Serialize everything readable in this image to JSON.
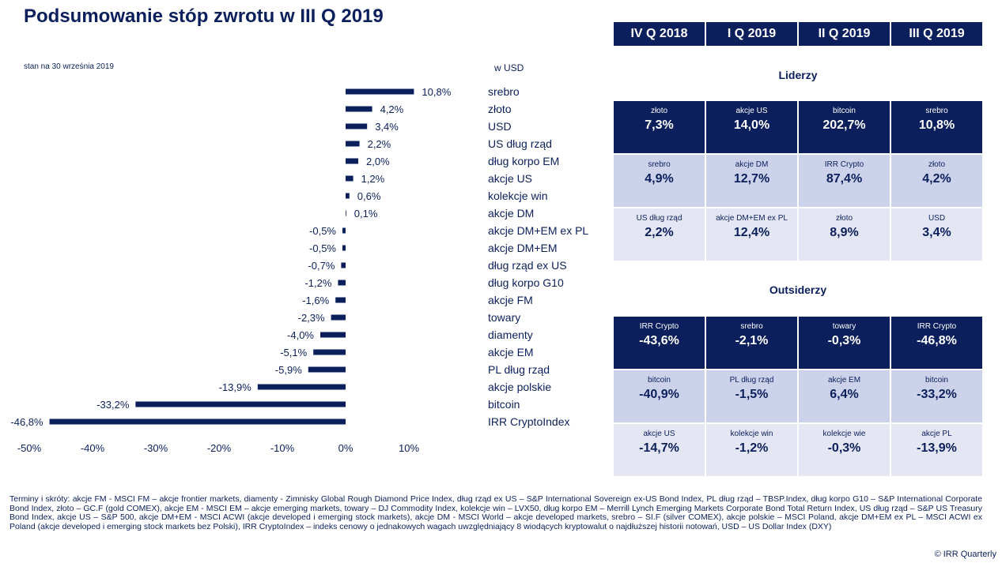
{
  "page": {
    "title": "Podsumowanie stóp zwrotu w III Q 2019",
    "as_of": "stan na 30 września 2019",
    "unit": "w USD",
    "footnote": "Terminy i skróty: akcje FM - MSCI FM – akcje frontier markets, diamenty - Zimnisky Global Rough Diamond Price Index, dług rząd ex US – S&P International Sovereign ex-US Bond Index, PL dług rząd – TBSP.Index, dług korpo G10 – S&P International Corporate Bond Index, złoto – GC.F (gold COMEX), akcje EM - MSCI EM – akcje emerging markets, towary – DJ Commodity Index, kolekcje win – LVX50, dług korpo EM – Merrill Lynch Emerging Markets Corporate Bond Total Return Index, US dług rząd – S&P US Treasury Bond Index, akcje US – S&P 500, akcje DM+EM - MSCI ACWI (akcje developed i emerging stock markets), akcje DM - MSCI World – akcje developed markets, srebro – SI.F (silver COMEX), akcje polskie – MSCI Poland, akcje DM+EM ex PL – MSCI ACWI ex Poland (akcje developed i emerging stock markets bez Polski), IRR CryptoIndex – indeks cenowy o jednakowych wagach uwzględniający 8 wiodących kryptowalut o najdłuższej historii notowań, USD – US Dollar Index (DXY)",
    "copyright": "© IRR Quarterly"
  },
  "chart_data": {
    "type": "bar",
    "orientation": "horizontal",
    "categories": [
      "srebro",
      "złoto",
      "USD",
      "US dług rząd",
      "dług korpo EM",
      "akcje US",
      "kolekcje win",
      "akcje DM",
      "akcje DM+EM ex PL",
      "akcje DM+EM",
      "dług rząd ex US",
      "dług korpo G10",
      "akcje FM",
      "towary",
      "diamenty",
      "akcje EM",
      "PL dług rząd",
      "akcje polskie",
      "bitcoin",
      "IRR CryptoIndex"
    ],
    "values": [
      10.8,
      4.2,
      3.4,
      2.2,
      2.0,
      1.2,
      0.6,
      0.1,
      -0.5,
      -0.5,
      -0.7,
      -1.2,
      -1.6,
      -2.3,
      -4.0,
      -5.1,
      -5.9,
      -13.9,
      -33.2,
      -46.8
    ],
    "value_labels": [
      "10,8%",
      "4,2%",
      "3,4%",
      "2,2%",
      "2,0%",
      "1,2%",
      "0,6%",
      "0,1%",
      "-0,5%",
      "-0,5%",
      "-0,7%",
      "-1,2%",
      "-1,6%",
      "-2,3%",
      "-4,0%",
      "-5,1%",
      "-5,9%",
      "-13,9%",
      "-33,2%",
      "-46,8%"
    ],
    "xlim": [
      -50,
      10
    ],
    "xticks": [
      -50,
      -40,
      -30,
      -20,
      -10,
      0,
      10
    ],
    "xtick_labels": [
      "-50%",
      "-40%",
      "-30%",
      "-20%",
      "-10%",
      "0%",
      "10%"
    ],
    "grid": false,
    "bar_color": "#0b1f5c"
  },
  "table": {
    "quarters": [
      "IV Q 2018",
      "I Q 2019",
      "II Q 2019",
      "III Q 2019"
    ],
    "leaders_title": "Liderzy",
    "outsiders_title": "Outsiderzy",
    "leaders": [
      [
        {
          "name": "złoto",
          "value": "7,3%"
        },
        {
          "name": "akcje US",
          "value": "14,0%"
        },
        {
          "name": "bitcoin",
          "value": "202,7%"
        },
        {
          "name": "srebro",
          "value": "10,8%"
        }
      ],
      [
        {
          "name": "srebro",
          "value": "4,9%"
        },
        {
          "name": "akcje DM",
          "value": "12,7%"
        },
        {
          "name": "IRR Crypto",
          "value": "87,4%"
        },
        {
          "name": "złoto",
          "value": "4,2%"
        }
      ],
      [
        {
          "name": "US dług rząd",
          "value": "2,2%"
        },
        {
          "name": "akcje DM+EM ex PL",
          "value": "12,4%"
        },
        {
          "name": "złoto",
          "value": "8,9%"
        },
        {
          "name": "USD",
          "value": "3,4%"
        }
      ]
    ],
    "outsiders": [
      [
        {
          "name": "IRR Crypto",
          "value": "-43,6%"
        },
        {
          "name": "srebro",
          "value": "-2,1%"
        },
        {
          "name": "towary",
          "value": "-0,3%"
        },
        {
          "name": "IRR Crypto",
          "value": "-46,8%"
        }
      ],
      [
        {
          "name": "bitcoin",
          "value": "-40,9%"
        },
        {
          "name": "PL dług rząd",
          "value": "-1,5%"
        },
        {
          "name": "akcje EM",
          "value": "6,4%"
        },
        {
          "name": "bitcoin",
          "value": "-33,2%"
        }
      ],
      [
        {
          "name": "akcje US",
          "value": "-14,7%"
        },
        {
          "name": "kolekcje win",
          "value": "-1,2%"
        },
        {
          "name": "kolekcje wie",
          "value": "-0,3%"
        },
        {
          "name": "akcje PL",
          "value": "-13,9%"
        }
      ]
    ],
    "colors": {
      "dark": "#0b1f5c",
      "mid": "#ccd2ea",
      "light": "#e4e7f3"
    }
  }
}
